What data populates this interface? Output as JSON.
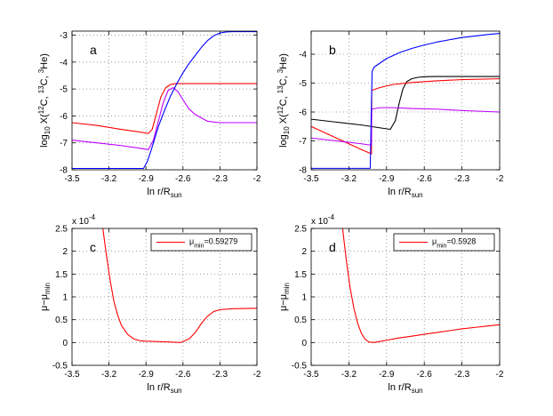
{
  "colors": {
    "blue": "#0000ff",
    "red": "#ff0000",
    "magenta": "#bf00ff",
    "black": "#000000"
  },
  "chart_data": [
    {
      "id": "a",
      "type": "line",
      "letter": "a",
      "xlabel": "ln r/R",
      "xlabel_sub": "sun",
      "ylabel": "log",
      "ylabel_sub": "10",
      "ylabel_rest": " X(",
      "ylabel_sp1": "12",
      "ylabel_t1": "C, ",
      "ylabel_sp2": "13",
      "ylabel_t2": "C, ",
      "ylabel_sp3": "3",
      "ylabel_t3": "He)",
      "xlim": [
        -3.5,
        -2
      ],
      "ylim": [
        -8,
        -2.85
      ],
      "xticks": [
        -3.5,
        -3.2,
        -2.9,
        -2.6,
        -2.3,
        -2
      ],
      "xtick_labels": [
        "-3.5",
        "-3.2",
        "-2.9",
        "-2.6",
        "-2.3",
        "-2"
      ],
      "yticks": [
        -8,
        -7,
        -6,
        -5,
        -4,
        -3
      ],
      "ytick_labels": [
        "-8",
        "-7",
        "-6",
        "-5",
        "-4",
        "-3"
      ],
      "series": [
        {
          "name": "12C",
          "color": "#ff0000",
          "x": [
            -3.5,
            -3.3,
            -3.1,
            -2.95,
            -2.88,
            -2.85,
            -2.82,
            -2.78,
            -2.74,
            -2.7,
            -2.66,
            -2.6,
            -2.5,
            -2.3,
            -2.0
          ],
          "y": [
            -6.25,
            -6.35,
            -6.5,
            -6.6,
            -6.65,
            -6.5,
            -6.0,
            -5.3,
            -4.95,
            -4.83,
            -4.8,
            -4.8,
            -4.8,
            -4.8,
            -4.8
          ]
        },
        {
          "name": "13C",
          "color": "#bf00ff",
          "x": [
            -3.5,
            -3.3,
            -3.1,
            -2.95,
            -2.88,
            -2.84,
            -2.8,
            -2.76,
            -2.72,
            -2.68,
            -2.64,
            -2.6,
            -2.55,
            -2.5,
            -2.4,
            -2.3,
            -2.0
          ],
          "y": [
            -6.9,
            -7.0,
            -7.1,
            -7.2,
            -7.25,
            -6.9,
            -6.2,
            -5.5,
            -5.05,
            -4.95,
            -5.1,
            -5.4,
            -5.75,
            -5.95,
            -6.2,
            -6.25,
            -6.25
          ]
        },
        {
          "name": "3He",
          "color": "#0000ff",
          "x": [
            -3.5,
            -3.2,
            -2.92,
            -2.89,
            -2.86,
            -2.83,
            -2.8,
            -2.75,
            -2.7,
            -2.65,
            -2.6,
            -2.55,
            -2.5,
            -2.45,
            -2.4,
            -2.35,
            -2.3,
            -2.25,
            -2.2,
            -2.0
          ],
          "y": [
            -7.95,
            -7.95,
            -7.95,
            -7.7,
            -7.3,
            -6.85,
            -6.4,
            -5.8,
            -5.25,
            -4.8,
            -4.4,
            -4.05,
            -3.75,
            -3.45,
            -3.2,
            -3.02,
            -2.92,
            -2.88,
            -2.87,
            -2.87
          ]
        }
      ]
    },
    {
      "id": "b",
      "type": "line",
      "letter": "b",
      "xlabel": "ln r/R",
      "xlabel_sub": "sun",
      "ylabel": "log",
      "ylabel_sub": "10",
      "ylabel_rest": " X(",
      "ylabel_sp1": "12",
      "ylabel_t1": "C, ",
      "ylabel_sp2": "13",
      "ylabel_t2": "C, ",
      "ylabel_sp3": "3",
      "ylabel_t3": "He)",
      "xlim": [
        -3.5,
        -2
      ],
      "ylim": [
        -8,
        -3.2
      ],
      "xticks": [
        -3.5,
        -3.2,
        -2.9,
        -2.6,
        -2.3,
        -2
      ],
      "xtick_labels": [
        "-3.5",
        "-3.2",
        "-2.9",
        "-2.6",
        "-2.3",
        "-2"
      ],
      "yticks": [
        -8,
        -7,
        -6,
        -5,
        -4
      ],
      "ytick_labels": [
        "-8",
        "-7",
        "-6",
        "-5",
        "-4"
      ],
      "series": [
        {
          "name": "black",
          "color": "#000000",
          "x": [
            -3.5,
            -3.3,
            -3.1,
            -2.95,
            -2.87,
            -2.83,
            -2.8,
            -2.77,
            -2.74,
            -2.7,
            -2.65,
            -2.6,
            -2.5,
            -2.3,
            -2.0
          ],
          "y": [
            -6.25,
            -6.35,
            -6.45,
            -6.55,
            -6.6,
            -6.3,
            -5.7,
            -5.2,
            -4.95,
            -4.85,
            -4.8,
            -4.78,
            -4.77,
            -4.77,
            -4.77
          ]
        },
        {
          "name": "12C",
          "color": "#ff0000",
          "x": [
            -3.5,
            -3.3,
            -3.1,
            -3.02,
            -3.018,
            -2.95,
            -2.85,
            -2.7,
            -2.5,
            -2.3,
            -2.0
          ],
          "y": [
            -6.5,
            -6.9,
            -7.3,
            -7.45,
            -5.25,
            -5.15,
            -5.05,
            -4.98,
            -4.92,
            -4.88,
            -4.85
          ]
        },
        {
          "name": "13C",
          "color": "#bf00ff",
          "x": [
            -3.5,
            -3.3,
            -3.1,
            -3.02,
            -3.018,
            -2.95,
            -2.85,
            -2.7,
            -2.5,
            -2.3,
            -2.0
          ],
          "y": [
            -6.9,
            -7.0,
            -7.1,
            -7.15,
            -5.9,
            -5.85,
            -5.85,
            -5.88,
            -5.9,
            -5.95,
            -6.0
          ]
        },
        {
          "name": "3He",
          "color": "#0000ff",
          "x": [
            -3.5,
            -3.2,
            -3.03,
            -3.02,
            -3.015,
            -3.0,
            -2.95,
            -2.9,
            -2.8,
            -2.7,
            -2.6,
            -2.5,
            -2.4,
            -2.3,
            -2.2,
            -2.1,
            -2.0
          ],
          "y": [
            -7.95,
            -7.95,
            -7.95,
            -5.6,
            -4.6,
            -4.45,
            -4.3,
            -4.15,
            -3.95,
            -3.8,
            -3.68,
            -3.58,
            -3.5,
            -3.42,
            -3.37,
            -3.32,
            -3.28
          ]
        }
      ]
    },
    {
      "id": "c",
      "type": "line",
      "letter": "c",
      "xlabel": "ln r/R",
      "xlabel_sub": "sun",
      "ylabel": "μ−μ",
      "ylabel_sub": "min",
      "exponent": "x 10",
      "exponent_sup": "-4",
      "xlim": [
        -3.5,
        -2
      ],
      "ylim": [
        -0.5,
        2.5
      ],
      "xticks": [
        -3.5,
        -3.2,
        -2.9,
        -2.6,
        -2.3,
        -2
      ],
      "xtick_labels": [
        "-3.5",
        "-3.2",
        "-2.9",
        "-2.6",
        "-2.3",
        "-2"
      ],
      "yticks": [
        -0.5,
        0,
        0.5,
        1,
        1.5,
        2,
        2.5
      ],
      "ytick_labels": [
        "-0.5",
        "0",
        "0.5",
        "1",
        "1.5",
        "2",
        "2.5"
      ],
      "legend": {
        "label": "μ",
        "label_sub": "min",
        "label_value": "=0.59279"
      },
      "series": [
        {
          "name": "μ_min=0.59279",
          "color": "#ff0000",
          "x": [
            -3.25,
            -3.22,
            -3.19,
            -3.16,
            -3.13,
            -3.1,
            -3.05,
            -3.0,
            -2.95,
            -2.9,
            -2.8,
            -2.7,
            -2.62,
            -2.55,
            -2.5,
            -2.45,
            -2.4,
            -2.35,
            -2.3,
            -2.2,
            -2.0
          ],
          "y": [
            2.5,
            1.9,
            1.35,
            0.9,
            0.6,
            0.38,
            0.18,
            0.08,
            0.04,
            0.03,
            0.02,
            0.01,
            0.0,
            0.08,
            0.22,
            0.42,
            0.58,
            0.68,
            0.72,
            0.74,
            0.75
          ]
        }
      ]
    },
    {
      "id": "d",
      "type": "line",
      "letter": "d",
      "xlabel": "ln r/R",
      "xlabel_sub": "sun",
      "ylabel": "μ−μ",
      "ylabel_sub": "min",
      "exponent": "x 10",
      "exponent_sup": "-4",
      "xlim": [
        -3.5,
        -2
      ],
      "ylim": [
        -0.5,
        2.5
      ],
      "xticks": [
        -3.5,
        -3.2,
        -2.9,
        -2.6,
        -2.3,
        -2
      ],
      "xtick_labels": [
        "-3.5",
        "-3.2",
        "-2.9",
        "-2.6",
        "-2.3",
        "-2"
      ],
      "yticks": [
        -0.5,
        0,
        0.5,
        1,
        1.5,
        2,
        2.5
      ],
      "ytick_labels": [
        "-0.5",
        "0",
        "0.5",
        "1",
        "1.5",
        "2",
        "2.5"
      ],
      "legend": {
        "label": "μ",
        "label_sub": "min",
        "label_value": "=0.5928"
      },
      "series": [
        {
          "name": "μ_min=0.5928",
          "color": "#ff0000",
          "x": [
            -3.25,
            -3.22,
            -3.19,
            -3.16,
            -3.13,
            -3.1,
            -3.07,
            -3.04,
            -3.0,
            -2.96,
            -2.9,
            -2.8,
            -2.7,
            -2.6,
            -2.5,
            -2.4,
            -2.3,
            -2.2,
            -2.1,
            -2.0
          ],
          "y": [
            2.5,
            1.8,
            1.2,
            0.75,
            0.42,
            0.2,
            0.07,
            0.01,
            0.0,
            0.02,
            0.05,
            0.1,
            0.14,
            0.18,
            0.22,
            0.26,
            0.3,
            0.33,
            0.36,
            0.39
          ]
        }
      ]
    }
  ]
}
